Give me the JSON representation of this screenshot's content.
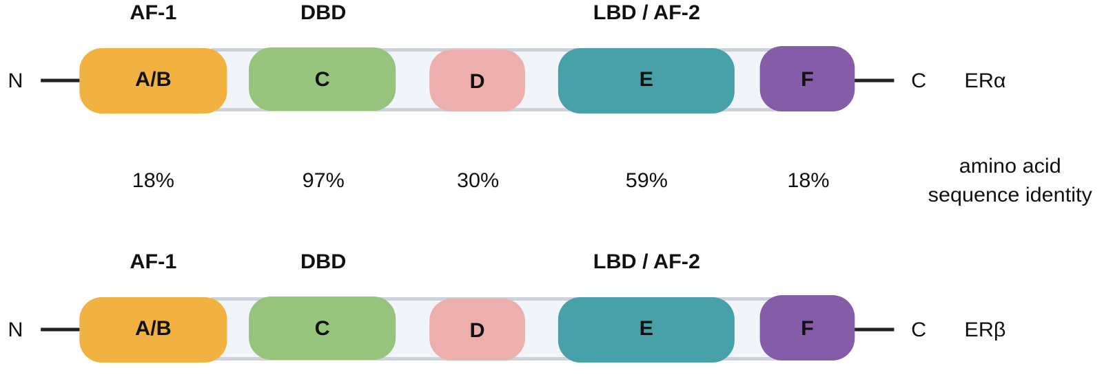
{
  "proteins": [
    {
      "name": "ERα",
      "n_label": "N",
      "c_label": "C",
      "regions": [
        "AF-1",
        "DBD",
        "LBD / AF-2"
      ],
      "domains": [
        "A/B",
        "C",
        "D",
        "E",
        "F"
      ]
    },
    {
      "name": "ERβ",
      "n_label": "N",
      "c_label": "C",
      "regions": [
        "AF-1",
        "DBD",
        "LBD / AF-2"
      ],
      "domains": [
        "A/B",
        "C",
        "D",
        "E",
        "F"
      ]
    }
  ],
  "identity": {
    "label": [
      "amino acid",
      "sequence identity"
    ],
    "values": [
      "18%",
      "97%",
      "30%",
      "59%",
      "18%"
    ]
  }
}
